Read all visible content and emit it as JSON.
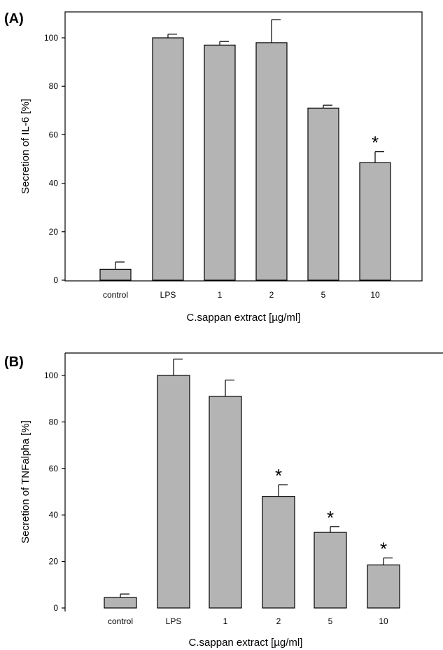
{
  "chart_data": [
    {
      "type": "bar",
      "panel_label": "(A)",
      "categories": [
        "control",
        "LPS",
        "1",
        "2",
        "5",
        "10"
      ],
      "values": [
        4.5,
        100,
        97,
        98,
        71,
        48.5
      ],
      "errors": [
        3,
        1.5,
        1.5,
        9.5,
        1.2,
        4.5
      ],
      "significance": [
        "",
        "",
        "",
        "",
        "",
        "*"
      ],
      "xlabel": "C.sappan extract [µg/ml]",
      "ylabel": "Secretion of IL-6 [%]",
      "ylim": [
        0,
        110
      ],
      "yticks": [
        0,
        20,
        40,
        60,
        80,
        100
      ],
      "frame": "full box"
    },
    {
      "type": "bar",
      "panel_label": "(B)",
      "categories": [
        "control",
        "LPS",
        "1",
        "2",
        "5",
        "10"
      ],
      "values": [
        4.5,
        100,
        91,
        48,
        32.5,
        18.5
      ],
      "errors": [
        1.5,
        7,
        7,
        5,
        2.5,
        3
      ],
      "significance": [
        "",
        "",
        "",
        "*",
        "*",
        "*"
      ],
      "xlabel": "C.sappan extract [µg/ml]",
      "ylabel": "Secretion of TNFalpha [%]",
      "ylim": [
        0,
        110
      ],
      "yticks": [
        0,
        20,
        40,
        60,
        80,
        100
      ],
      "frame": "top and left axes"
    }
  ]
}
